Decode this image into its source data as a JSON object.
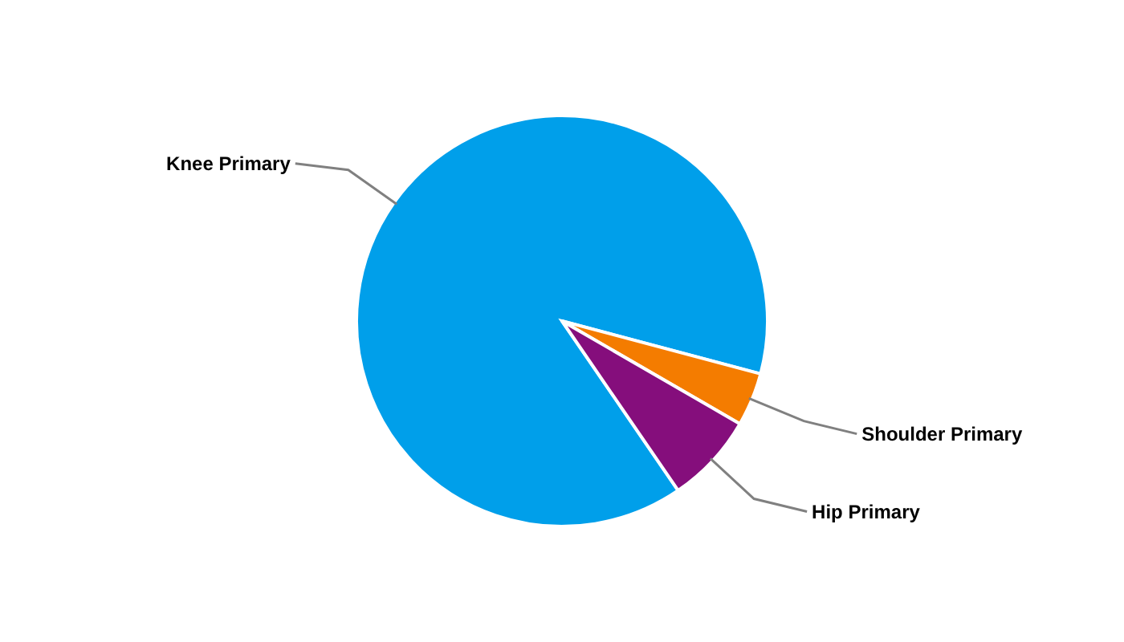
{
  "chart_data": {
    "type": "pie",
    "categories": [
      "Knee Primary",
      "Shoulder Primary",
      "Hip Primary"
    ],
    "values": [
      88.7,
      4.2,
      7.1
    ],
    "colors": [
      "#009fea",
      "#f47c00",
      "#850e7c"
    ]
  }
}
